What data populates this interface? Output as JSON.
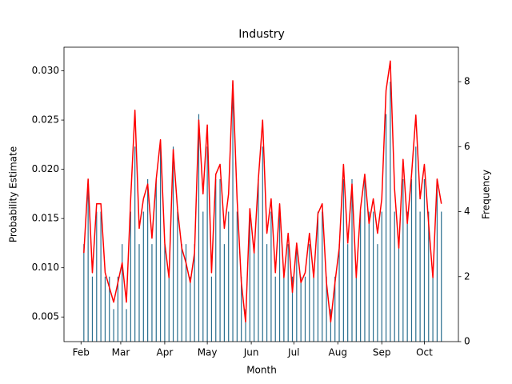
{
  "chart_data": {
    "type": "bar-line",
    "title": "Industry",
    "x_label": "Month",
    "y_label": "Probability Estimate",
    "y2_label": "Frequency",
    "x": [
      2,
      5,
      8,
      11,
      14,
      17,
      20,
      23,
      26,
      29,
      32,
      35,
      38,
      41,
      44,
      47,
      50,
      53,
      56,
      59,
      62,
      65,
      68,
      71,
      74,
      77,
      80,
      83,
      86,
      89,
      92,
      95,
      98,
      101,
      104,
      107,
      110,
      113,
      116,
      119,
      122,
      125,
      128,
      131,
      134,
      137,
      140,
      143,
      146,
      149,
      152,
      155,
      158,
      161,
      164,
      167,
      170,
      173,
      176,
      179,
      182,
      185,
      188,
      191,
      194,
      197,
      200,
      203,
      206,
      209,
      212,
      215,
      218,
      221,
      224,
      227,
      230,
      233,
      236,
      239,
      242,
      245,
      248,
      251,
      254
    ],
    "series": [
      {
        "type": "bar",
        "axis": "y2",
        "color": "#2a6f8f",
        "values": [
          3,
          5,
          2,
          4,
          4,
          2,
          2,
          1,
          2,
          3,
          1,
          4,
          6,
          3,
          4,
          5,
          3,
          5,
          6,
          3,
          2,
          6,
          4,
          3,
          3,
          2,
          3,
          7,
          4,
          6,
          2,
          5,
          5,
          3,
          4,
          8,
          4,
          2,
          1,
          4,
          3,
          5,
          6,
          3,
          4,
          2,
          4,
          2,
          3,
          2,
          3,
          2,
          2,
          3,
          2,
          4,
          4,
          2,
          1,
          2,
          3,
          5,
          3,
          5,
          2,
          4,
          5,
          4,
          4,
          3,
          4,
          7,
          8,
          4,
          3,
          5,
          4,
          5,
          6,
          4,
          5,
          4,
          2,
          5,
          4
        ]
      },
      {
        "type": "line",
        "axis": "y",
        "color": "#ff0000",
        "values": [
          0.0115,
          0.019,
          0.0095,
          0.0165,
          0.0165,
          0.0095,
          0.008,
          0.0065,
          0.0085,
          0.0105,
          0.0065,
          0.017,
          0.026,
          0.014,
          0.017,
          0.0185,
          0.013,
          0.019,
          0.023,
          0.0125,
          0.009,
          0.022,
          0.016,
          0.012,
          0.0105,
          0.0085,
          0.0115,
          0.025,
          0.0175,
          0.0245,
          0.0095,
          0.0195,
          0.0205,
          0.014,
          0.0175,
          0.029,
          0.017,
          0.0085,
          0.0045,
          0.016,
          0.0115,
          0.019,
          0.025,
          0.0135,
          0.017,
          0.0095,
          0.0165,
          0.009,
          0.0135,
          0.0075,
          0.0125,
          0.0085,
          0.0095,
          0.0135,
          0.009,
          0.0155,
          0.0165,
          0.0085,
          0.0045,
          0.0085,
          0.012,
          0.0205,
          0.0125,
          0.0185,
          0.009,
          0.016,
          0.0195,
          0.0145,
          0.017,
          0.0135,
          0.017,
          0.028,
          0.031,
          0.018,
          0.012,
          0.021,
          0.0145,
          0.0195,
          0.0255,
          0.017,
          0.0205,
          0.0145,
          0.009,
          0.019,
          0.0165
        ]
      }
    ],
    "xlim": [
      -12,
      266
    ],
    "xticks": [
      {
        "value": 0,
        "label": "Feb"
      },
      {
        "value": 28,
        "label": "Mar"
      },
      {
        "value": 59,
        "label": "Apr"
      },
      {
        "value": 89,
        "label": "May"
      },
      {
        "value": 120,
        "label": "Jun"
      },
      {
        "value": 150,
        "label": "Jul"
      },
      {
        "value": 181,
        "label": "Aug"
      },
      {
        "value": 212,
        "label": "Sep"
      },
      {
        "value": 242,
        "label": "Oct"
      }
    ],
    "ylim": [
      0.0025,
      0.0324
    ],
    "yticks": [
      0.005,
      {
        "value": 0.01,
        "label": "0.010"
      },
      0.015,
      {
        "value": 0.02,
        "label": "0.020"
      },
      0.025,
      {
        "value": 0.03,
        "label": "0.030"
      }
    ],
    "y2lim": [
      0,
      9.06
    ],
    "y2ticks": [
      0,
      2,
      4,
      6,
      8
    ]
  }
}
